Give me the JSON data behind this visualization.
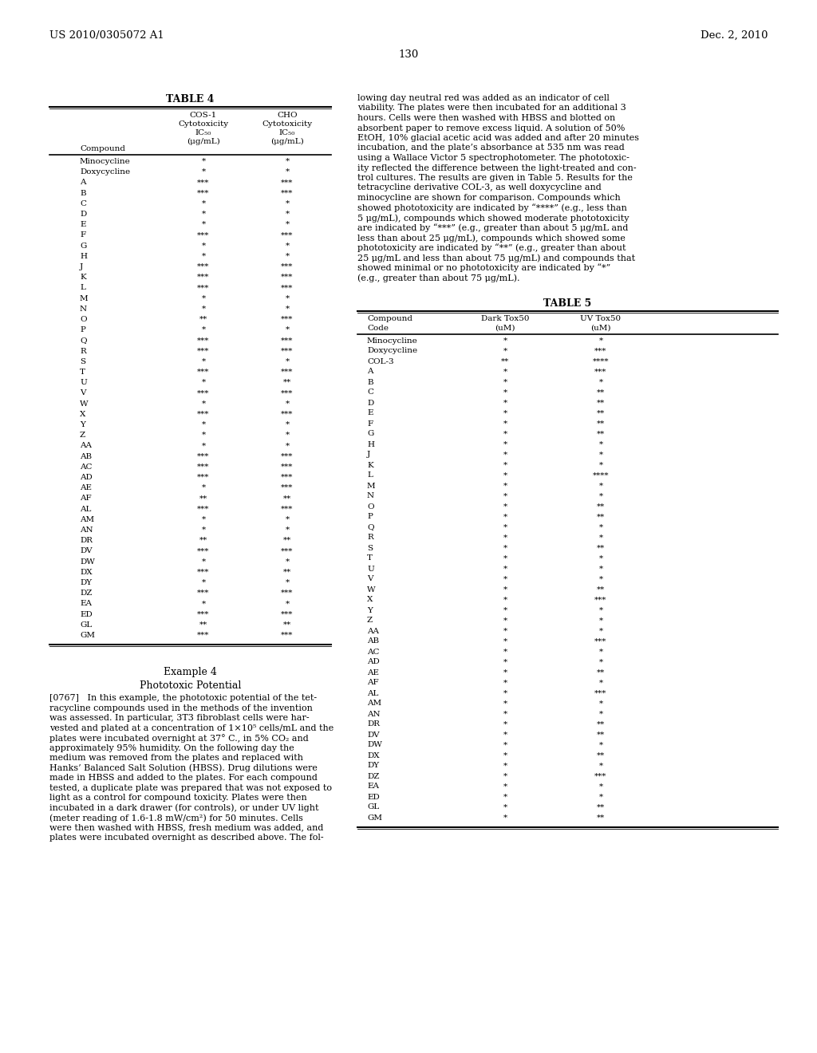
{
  "header_left": "US 2010/0305072 A1",
  "header_right": "Dec. 2, 2010",
  "page_number": "130",
  "table4_title": "TABLE 4",
  "table4_data": [
    [
      "Minocycline",
      "*",
      "*"
    ],
    [
      "Doxycycline",
      "*",
      "*"
    ],
    [
      "A",
      "***",
      "***"
    ],
    [
      "B",
      "***",
      "***"
    ],
    [
      "C",
      "*",
      "*"
    ],
    [
      "D",
      "*",
      "*"
    ],
    [
      "E",
      "*",
      "*"
    ],
    [
      "F",
      "***",
      "***"
    ],
    [
      "G",
      "*",
      "*"
    ],
    [
      "H",
      "*",
      "*"
    ],
    [
      "J",
      "***",
      "***"
    ],
    [
      "K",
      "***",
      "***"
    ],
    [
      "L",
      "***",
      "***"
    ],
    [
      "M",
      "*",
      "*"
    ],
    [
      "N",
      "*",
      "*"
    ],
    [
      "O",
      "**",
      "***"
    ],
    [
      "P",
      "*",
      "*"
    ],
    [
      "Q",
      "***",
      "***"
    ],
    [
      "R",
      "***",
      "***"
    ],
    [
      "S",
      "*",
      "*"
    ],
    [
      "T",
      "***",
      "***"
    ],
    [
      "U",
      "*",
      "**"
    ],
    [
      "V",
      "***",
      "***"
    ],
    [
      "W",
      "*",
      "*"
    ],
    [
      "X",
      "***",
      "***"
    ],
    [
      "Y",
      "*",
      "*"
    ],
    [
      "Z",
      "*",
      "*"
    ],
    [
      "AA",
      "*",
      "*"
    ],
    [
      "AB",
      "***",
      "***"
    ],
    [
      "AC",
      "***",
      "***"
    ],
    [
      "AD",
      "***",
      "***"
    ],
    [
      "AE",
      "*",
      "***"
    ],
    [
      "AF",
      "**",
      "**"
    ],
    [
      "AL",
      "***",
      "***"
    ],
    [
      "AM",
      "*",
      "*"
    ],
    [
      "AN",
      "*",
      "*"
    ],
    [
      "DR",
      "**",
      "**"
    ],
    [
      "DV",
      "***",
      "***"
    ],
    [
      "DW",
      "*",
      "*"
    ],
    [
      "DX",
      "***",
      "**"
    ],
    [
      "DY",
      "*",
      "*"
    ],
    [
      "DZ",
      "***",
      "***"
    ],
    [
      "EA",
      "*",
      "*"
    ],
    [
      "ED",
      "***",
      "***"
    ],
    [
      "GL",
      "**",
      "**"
    ],
    [
      "GM",
      "***",
      "***"
    ]
  ],
  "example_title": "Example 4",
  "example_subtitle": "Phototoxic Potential",
  "para_lines": [
    "[0767]   In this example, the phototoxic potential of the tet-",
    "racycline compounds used in the methods of the invention",
    "was assessed. In particular, 3T3 fibroblast cells were har-",
    "vested and plated at a concentration of 1×10⁵ cells/mL and the",
    "plates were incubated overnight at 37° C., in 5% CO₂ and",
    "approximately 95% humidity. On the following day the",
    "medium was removed from the plates and replaced with",
    "Hanks’ Balanced Salt Solution (HBSS). Drug dilutions were",
    "made in HBSS and added to the plates. For each compound",
    "tested, a duplicate plate was prepared that was not exposed to",
    "light as a control for compound toxicity. Plates were then",
    "incubated in a dark drawer (for controls), or under UV light",
    "(meter reading of 1.6-1.8 mW/cm²) for 50 minutes. Cells",
    "were then washed with HBSS, fresh medium was added, and",
    "plates were incubated overnight as described above. The fol-"
  ],
  "rc_lines": [
    "lowing day neutral red was added as an indicator of cell",
    "viability. The plates were then incubated for an additional 3",
    "hours. Cells were then washed with HBSS and blotted on",
    "absorbent paper to remove excess liquid. A solution of 50%",
    "EtOH, 10% glacial acetic acid was added and after 20 minutes",
    "incubation, and the plate’s absorbance at 535 nm was read",
    "using a Wallace Victor 5 spectrophotometer. The phototoxic-",
    "ity reflected the difference between the light-treated and con-",
    "trol cultures. The results are given in Table 5. Results for the",
    "tetracycline derivative COL-3, as well doxycycline and",
    "minocycline are shown for comparison. Compounds which",
    "showed phototoxicity are indicated by “****” (e.g., less than",
    "5 μg/mL), compounds which showed moderate phototoxicity",
    "are indicated by “***” (e.g., greater than about 5 μg/mL and",
    "less than about 25 μg/mL), compounds which showed some",
    "phototoxicity are indicated by “**” (e.g., greater than about",
    "25 μg/mL and less than about 75 μg/mL) and compounds that",
    "showed minimal or no phototoxicity are indicated by “*”",
    "(e.g., greater than about 75 μg/mL)."
  ],
  "table5_title": "TABLE 5",
  "table5_data": [
    [
      "Minocycline",
      "*",
      "*"
    ],
    [
      "Doxycycline",
      "*",
      "***"
    ],
    [
      "COL-3",
      "**",
      "****"
    ],
    [
      "A",
      "*",
      "***"
    ],
    [
      "B",
      "*",
      "*"
    ],
    [
      "C",
      "*",
      "**"
    ],
    [
      "D",
      "*",
      "**"
    ],
    [
      "E",
      "*",
      "**"
    ],
    [
      "F",
      "*",
      "**"
    ],
    [
      "G",
      "*",
      "**"
    ],
    [
      "H",
      "*",
      "*"
    ],
    [
      "J",
      "*",
      "*"
    ],
    [
      "K",
      "*",
      "*"
    ],
    [
      "L",
      "*",
      "****"
    ],
    [
      "M",
      "*",
      "*"
    ],
    [
      "N",
      "*",
      "*"
    ],
    [
      "O",
      "*",
      "**"
    ],
    [
      "P",
      "*",
      "**"
    ],
    [
      "Q",
      "*",
      "*"
    ],
    [
      "R",
      "*",
      "*"
    ],
    [
      "S",
      "*",
      "**"
    ],
    [
      "T",
      "*",
      "*"
    ],
    [
      "U",
      "*",
      "*"
    ],
    [
      "V",
      "*",
      "*"
    ],
    [
      "W",
      "*",
      "**"
    ],
    [
      "X",
      "*",
      "***"
    ],
    [
      "Y",
      "*",
      "*"
    ],
    [
      "Z",
      "*",
      "*"
    ],
    [
      "AA",
      "*",
      "*"
    ],
    [
      "AB",
      "*",
      "***"
    ],
    [
      "AC",
      "*",
      "*"
    ],
    [
      "AD",
      "*",
      "*"
    ],
    [
      "AE",
      "*",
      "**"
    ],
    [
      "AF",
      "*",
      "*"
    ],
    [
      "AL",
      "*",
      "***"
    ],
    [
      "AM",
      "*",
      "*"
    ],
    [
      "AN",
      "*",
      "*"
    ],
    [
      "DR",
      "*",
      "**"
    ],
    [
      "DV",
      "*",
      "**"
    ],
    [
      "DW",
      "*",
      "*"
    ],
    [
      "DX",
      "*",
      "**"
    ],
    [
      "DY",
      "*",
      "*"
    ],
    [
      "DZ",
      "*",
      "***"
    ],
    [
      "EA",
      "*",
      "*"
    ],
    [
      "ED",
      "*",
      "*"
    ],
    [
      "GL",
      "*",
      "**"
    ],
    [
      "GM",
      "*",
      "**"
    ]
  ],
  "bg_color": "#ffffff",
  "text_color": "#000000",
  "font_size_header": 9.5,
  "font_size_table": 8.0,
  "font_size_body": 8.5,
  "font_size_page": 9.5
}
